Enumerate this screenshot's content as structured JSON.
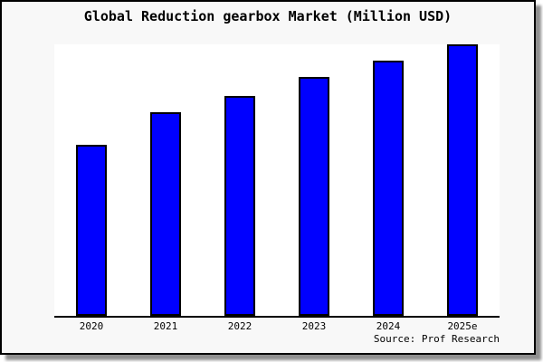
{
  "chart_data": {
    "type": "bar",
    "title": "Global Reduction gearbox Market (Million USD)",
    "categories": [
      "2020",
      "2021",
      "2022",
      "2023",
      "2024",
      "2025e"
    ],
    "values": [
      63,
      75,
      81,
      88,
      94,
      100
    ],
    "xlabel": "",
    "ylabel": "",
    "ylim": [
      0,
      100
    ],
    "grid": false,
    "legend_position": "none",
    "y_axis_visible": false,
    "bar_fill_color": "#0000ff",
    "bar_border_color": "#000000"
  },
  "source": {
    "label": "Source: Prof Research"
  },
  "colors": {
    "frame_background": "#f8f8f8",
    "plot_background": "#ffffff",
    "axis_color": "#000000",
    "text_color": "#000000",
    "shadow_color": "#8f8f8f"
  }
}
